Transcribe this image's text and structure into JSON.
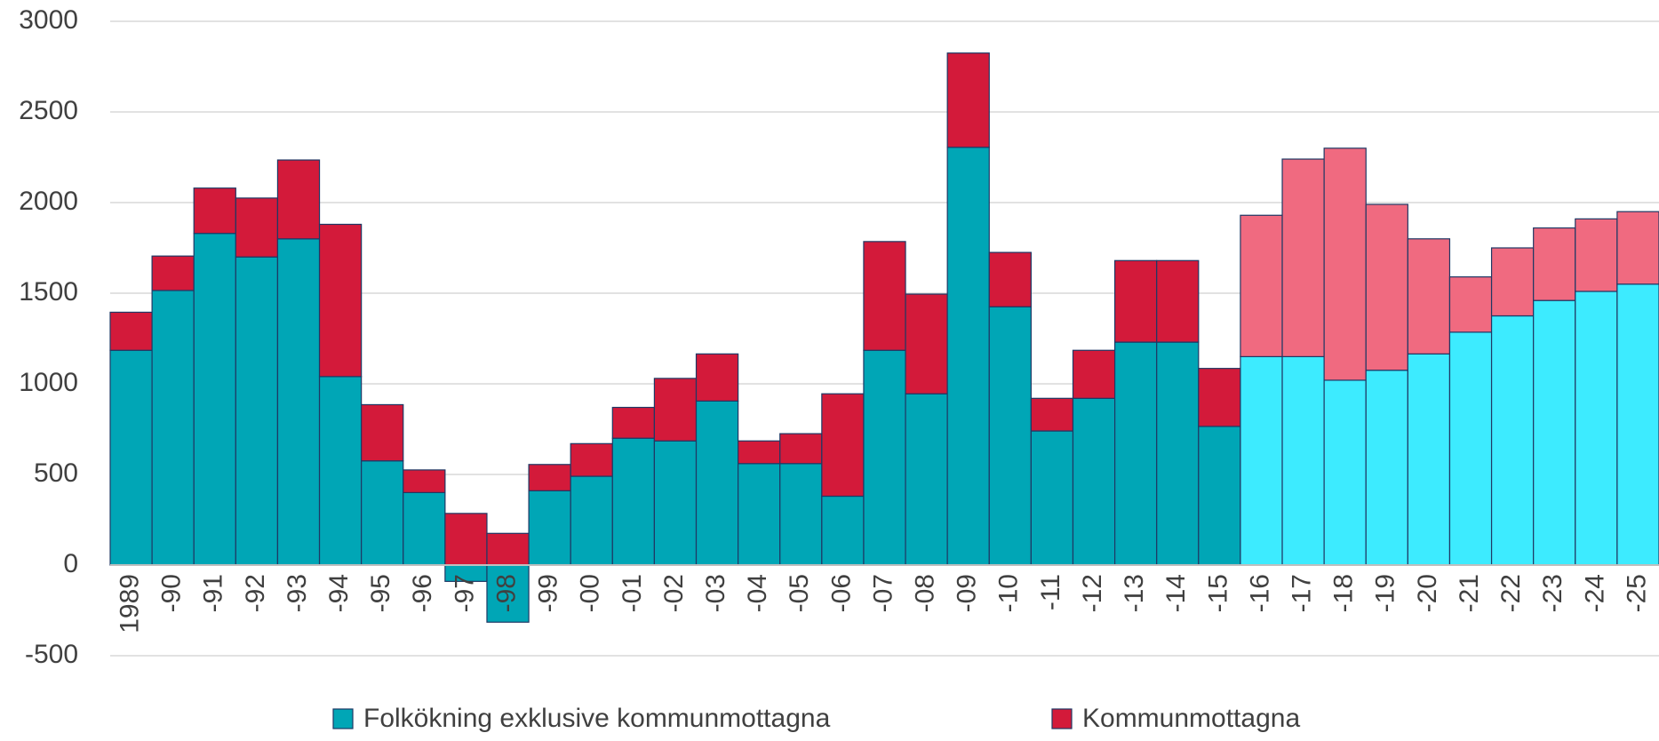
{
  "chart_data": {
    "type": "stacked_bar",
    "categories": [
      "1989",
      "-90",
      "-91",
      "-92",
      "-93",
      "-94",
      "-95",
      "-96",
      "-97",
      "-98",
      "-99",
      "-00",
      "-01",
      "-02",
      "-03",
      "-04",
      "-05",
      "-06",
      "-07",
      "-08",
      "-09",
      "-10",
      "-11",
      "-12",
      "-13",
      "-14",
      "-15",
      "-16",
      "-17",
      "-18",
      "-19",
      "-20",
      "-21",
      "-22",
      "-23",
      "-24",
      "-25"
    ],
    "series": [
      {
        "name": "Folkökning exklusive kommunmottagna",
        "color": "#00a6b6",
        "colors": [
          "#00a6b6",
          "#00a6b6",
          "#00a6b6",
          "#00a6b6",
          "#00a6b6",
          "#00a6b6",
          "#00a6b6",
          "#00a6b6",
          "#00a6b6",
          "#00a6b6",
          "#00a6b6",
          "#00a6b6",
          "#00a6b6",
          "#00a6b6",
          "#00a6b6",
          "#00a6b6",
          "#00a6b6",
          "#00a6b6",
          "#00a6b6",
          "#00a6b6",
          "#00a6b6",
          "#00a6b6",
          "#00a6b6",
          "#00a6b6",
          "#00a6b6",
          "#00a6b6",
          "#00a6b6",
          "#3debff",
          "#3debff",
          "#3debff",
          "#3debff",
          "#3debff",
          "#3debff",
          "#3debff",
          "#3debff",
          "#3debff",
          "#3debff"
        ],
        "values": [
          1185,
          1515,
          1830,
          1700,
          1800,
          1040,
          575,
          400,
          -90,
          -315,
          410,
          490,
          700,
          685,
          905,
          560,
          560,
          380,
          1185,
          945,
          2305,
          1425,
          740,
          920,
          1230,
          1230,
          765,
          1150,
          1150,
          1020,
          1075,
          1165,
          1285,
          1375,
          1460,
          1510,
          1550
        ]
      },
      {
        "name": "Kommunmottagna",
        "color": "#d31a3a",
        "colors": [
          "#d31a3a",
          "#d31a3a",
          "#d31a3a",
          "#d31a3a",
          "#d31a3a",
          "#d31a3a",
          "#d31a3a",
          "#d31a3a",
          "#d31a3a",
          "#d31a3a",
          "#d31a3a",
          "#d31a3a",
          "#d31a3a",
          "#d31a3a",
          "#d31a3a",
          "#d31a3a",
          "#d31a3a",
          "#d31a3a",
          "#d31a3a",
          "#d31a3a",
          "#d31a3a",
          "#d31a3a",
          "#d31a3a",
          "#d31a3a",
          "#d31a3a",
          "#d31a3a",
          "#d31a3a",
          "#f06a80",
          "#f06a80",
          "#f06a80",
          "#f06a80",
          "#f06a80",
          "#f06a80",
          "#f06a80",
          "#f06a80",
          "#f06a80",
          "#f06a80"
        ],
        "values": [
          210,
          190,
          250,
          325,
          435,
          840,
          310,
          125,
          285,
          175,
          145,
          180,
          170,
          345,
          260,
          125,
          165,
          565,
          600,
          550,
          520,
          300,
          180,
          265,
          450,
          450,
          320,
          780,
          1090,
          1280,
          915,
          635,
          305,
          375,
          400,
          400,
          400
        ]
      }
    ],
    "ylim": [
      -500,
      3000
    ],
    "yticks": [
      -500,
      0,
      500,
      1000,
      1500,
      2000,
      2500,
      3000
    ],
    "grid": true,
    "legend": "bottom"
  }
}
